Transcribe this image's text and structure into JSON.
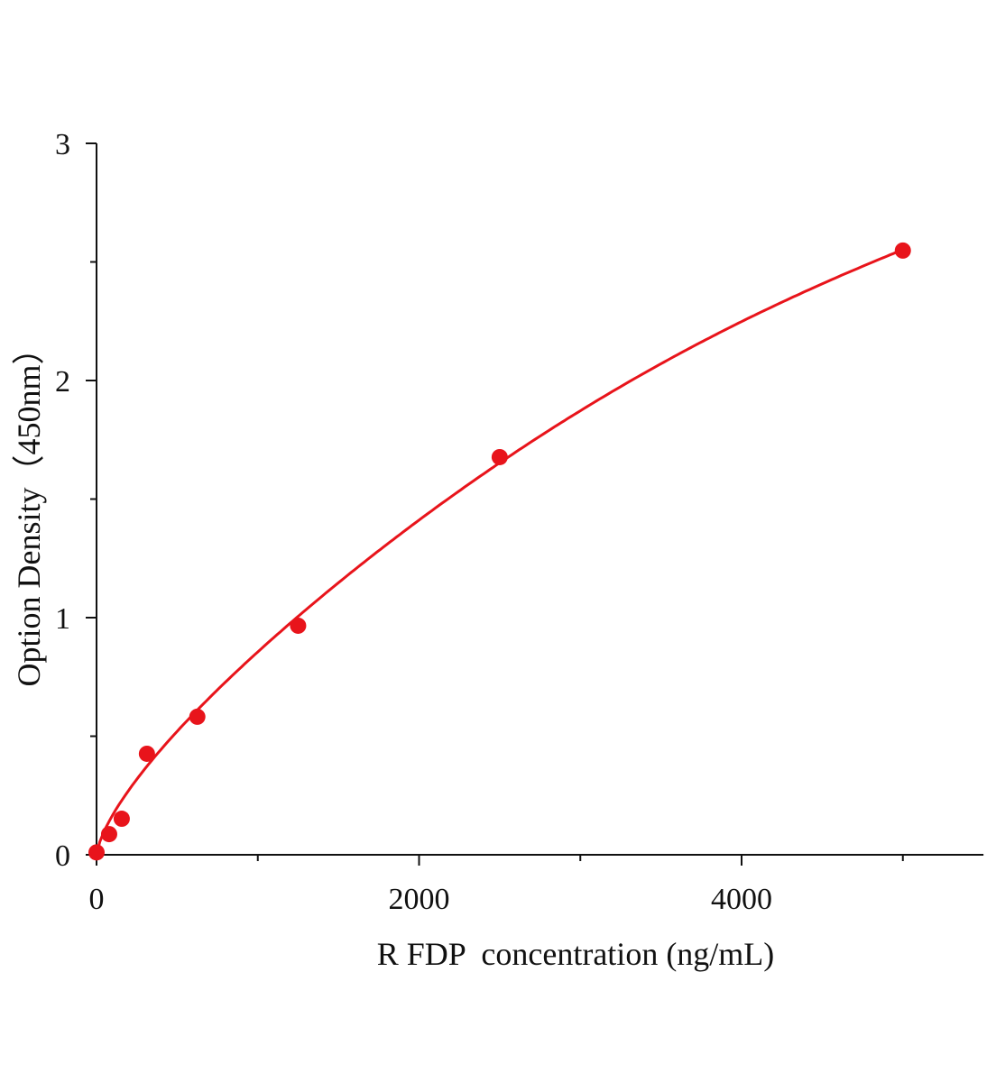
{
  "chart_data": {
    "type": "scatter",
    "title": "",
    "xlabel": "R FDP  concentration (ng/mL)",
    "ylabel": "Option Density（450nm）",
    "xlim": [
      0,
      5500
    ],
    "ylim": [
      0,
      3
    ],
    "x_ticks": [
      0,
      2000,
      4000
    ],
    "x_tick_labels": [
      "0",
      "2000",
      "4000"
    ],
    "x_minor_ticks": [
      1000,
      3000,
      5000
    ],
    "y_ticks": [
      0,
      1,
      2,
      3
    ],
    "y_tick_labels": [
      "0",
      "1",
      "2",
      "3"
    ],
    "y_minor_ticks": [
      0.5,
      1.5,
      2.5
    ],
    "grid": false,
    "color": "#e8141b",
    "fit_curve": true,
    "series": [
      {
        "x": [
          0,
          78.125,
          156.25,
          312.5,
          625,
          1250,
          2500,
          5000
        ],
        "y": [
          0.01,
          0.087,
          0.152,
          0.426,
          0.582,
          0.966,
          1.677,
          2.548
        ]
      }
    ]
  }
}
